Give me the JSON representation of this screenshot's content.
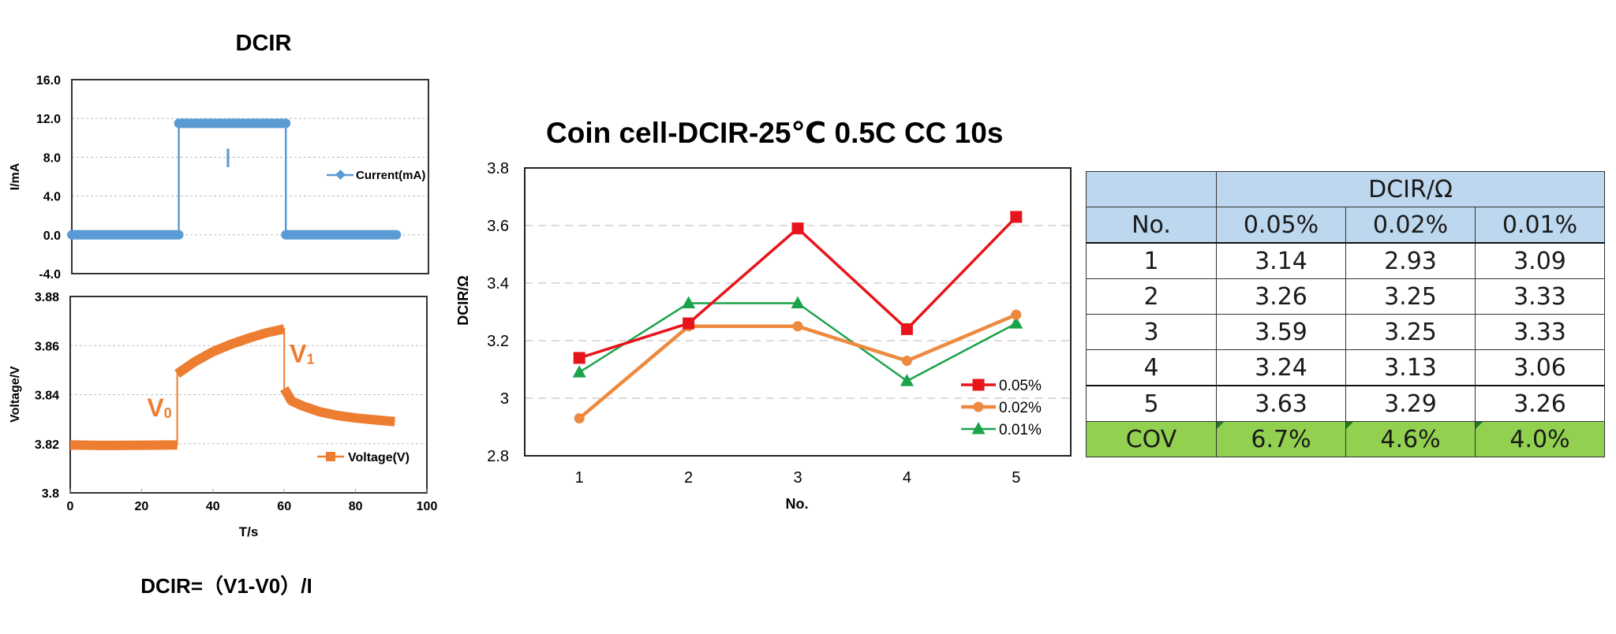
{
  "chart_data": [
    {
      "id": "current",
      "type": "line",
      "title": "DCIR",
      "xlabel": "",
      "ylabel": "I/mA",
      "xlim": [
        0,
        100
      ],
      "ylim": [
        -4.0,
        16.0
      ],
      "yticks": [
        "16.0",
        "12.0",
        "8.0",
        "4.0",
        "0.0",
        "-4.0"
      ],
      "ytick_values": [
        16,
        12,
        8,
        4,
        0,
        -4
      ],
      "grid": true,
      "legend_position": "right",
      "annotation": "I",
      "series": [
        {
          "name": "Current(mA)",
          "color": "#5B9BD5",
          "marker": "diamond",
          "x": [
            0,
            30,
            30,
            60,
            60,
            91
          ],
          "y": [
            0.0,
            0.0,
            11.5,
            11.5,
            0.0,
            0.0
          ]
        }
      ]
    },
    {
      "id": "voltage",
      "type": "line",
      "title": "",
      "xlabel": "T/s",
      "ylabel": "Voltage/V",
      "xlim": [
        0,
        100
      ],
      "ylim": [
        3.8,
        3.88
      ],
      "xticks": [
        "0",
        "20",
        "40",
        "60",
        "80",
        "100"
      ],
      "xtick_values": [
        0,
        20,
        40,
        60,
        80,
        100
      ],
      "yticks": [
        "3.88",
        "3.86",
        "3.84",
        "3.82",
        "3.8"
      ],
      "ytick_values": [
        3.88,
        3.86,
        3.84,
        3.82,
        3.8
      ],
      "grid": true,
      "legend_position": "bottom-right",
      "annotations": [
        {
          "text": "V",
          "sub": "0",
          "x": 25,
          "y": 3.835
        },
        {
          "text": "V",
          "sub": "1",
          "x": 65,
          "y": 3.857
        }
      ],
      "series": [
        {
          "name": "Voltage(V)",
          "color": "#ED7D31",
          "marker": "square",
          "x": [
            0,
            10,
            20,
            30,
            30,
            35,
            40,
            45,
            50,
            55,
            60,
            60,
            62,
            65,
            70,
            75,
            80,
            85,
            91
          ],
          "y": [
            3.8195,
            3.8193,
            3.8194,
            3.8195,
            3.8485,
            3.8535,
            3.8575,
            3.8605,
            3.863,
            3.8652,
            3.8668,
            3.8425,
            3.8375,
            3.8355,
            3.833,
            3.8315,
            3.8305,
            3.8298,
            3.829
          ]
        }
      ]
    },
    {
      "id": "dcir",
      "type": "line",
      "title": "Coin cell-DCIR-25℃ 0.5C CC 10s",
      "xlabel": "No.",
      "ylabel": "DCIR/Ω",
      "categories": [
        "1",
        "2",
        "3",
        "4",
        "5"
      ],
      "ylim": [
        2.8,
        3.8
      ],
      "yticks": [
        "3.8",
        "3.6",
        "3.4",
        "3.2",
        "3",
        "2.8"
      ],
      "ytick_values": [
        3.8,
        3.6,
        3.4,
        3.2,
        3.0,
        2.8
      ],
      "grid": true,
      "legend_position": "bottom-right",
      "series": [
        {
          "name": "0.05%",
          "color": "#E8141B",
          "marker": "square",
          "values": [
            3.14,
            3.26,
            3.59,
            3.24,
            3.63
          ]
        },
        {
          "name": "0.02%",
          "color": "#ED8A3F",
          "marker": "circle",
          "values": [
            2.93,
            3.25,
            3.25,
            3.13,
            3.29
          ]
        },
        {
          "name": "0.01%",
          "color": "#1BA34A",
          "marker": "triangle",
          "values": [
            3.09,
            3.33,
            3.33,
            3.06,
            3.26
          ]
        }
      ]
    }
  ],
  "formula": "DCIR=（V1-V0）/I",
  "table": {
    "group_header": "DCIR/Ω",
    "columns": [
      "No.",
      "0.05%",
      "0.02%",
      "0.01%"
    ],
    "rows": [
      [
        "1",
        "3.14",
        "2.93",
        "3.09"
      ],
      [
        "2",
        "3.26",
        "3.25",
        "3.33"
      ],
      [
        "3",
        "3.59",
        "3.25",
        "3.33"
      ],
      [
        "4",
        "3.24",
        "3.13",
        "3.06"
      ],
      [
        "5",
        "3.63",
        "3.29",
        "3.26"
      ]
    ],
    "summary": [
      "COV",
      "6.7%",
      "4.6%",
      "4.0%"
    ],
    "colors": {
      "header": "#BDD7EE",
      "summary": "#92D050"
    }
  }
}
